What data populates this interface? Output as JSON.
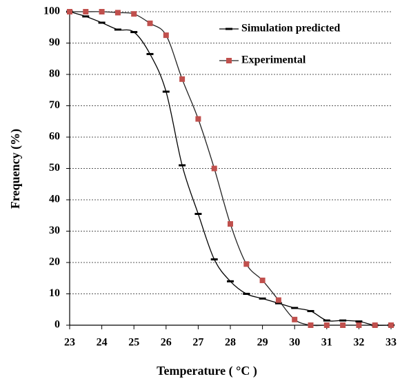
{
  "chart_data": {
    "type": "line",
    "x_label": "Temperature ( °C )",
    "y_label": "Frequency (%)",
    "x": [
      23,
      23.5,
      24,
      24.5,
      25,
      25.5,
      26,
      26.5,
      27,
      27.5,
      28,
      28.5,
      29,
      29.5,
      30,
      30.5,
      31,
      31.5,
      32,
      32.5,
      33
    ],
    "series": [
      {
        "name": "Simulation predicted",
        "color": "#000000",
        "line_color": "#000000",
        "marker": "dash",
        "values": [
          100,
          98.5,
          96.5,
          94.3,
          93.5,
          86.5,
          74.5,
          51,
          35.5,
          21,
          14,
          10,
          8.5,
          7,
          5.5,
          4.5,
          1.5,
          1.5,
          1.2,
          0,
          0
        ]
      },
      {
        "name": "Experimental",
        "color": "#c0504d",
        "line_color": "#222222",
        "marker": "square",
        "values": [
          100,
          100,
          100,
          99.7,
          99.3,
          96.3,
          92.5,
          78.5,
          65.8,
          50,
          32.3,
          19.5,
          14.3,
          8,
          1.8,
          0,
          0,
          0,
          0,
          0,
          0
        ]
      }
    ],
    "xlim": [
      23,
      33
    ],
    "xticks": [
      23,
      24,
      25,
      26,
      27,
      28,
      29,
      30,
      31,
      32,
      33
    ],
    "ylim": [
      0,
      100
    ],
    "yticks": [
      0,
      10,
      20,
      30,
      40,
      50,
      60,
      70,
      80,
      90,
      100
    ],
    "grid": true,
    "legend": "top-right"
  }
}
